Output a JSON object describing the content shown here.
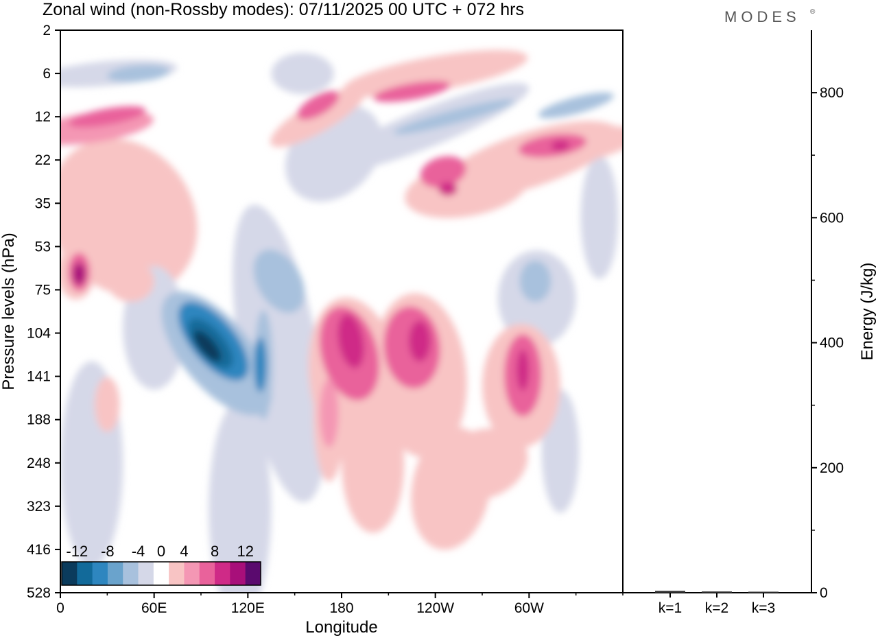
{
  "title": "Zonal wind (non-Rossby modes):  07/11/2025  00 UTC  + 072 hrs",
  "logo": "MODES",
  "logo_mark": "®",
  "chart_data": [
    {
      "type": "heatmap",
      "title": "Zonal wind (non-Rossby modes):  07/11/2025  00 UTC  + 072 hrs",
      "variable": "zonal wind",
      "xlabel": "Longitude",
      "ylabel": "Pressure levels (hPa)",
      "x_ticks": [
        "0",
        "60E",
        "120E",
        "180",
        "120W",
        "60W"
      ],
      "x_tick_degrees": [
        0,
        60,
        120,
        180,
        240,
        300
      ],
      "xlim": [
        0,
        360
      ],
      "y_ticks": [
        "2",
        "6",
        "12",
        "22",
        "35",
        "53",
        "75",
        "104",
        "141",
        "188",
        "248",
        "323",
        "416",
        "528"
      ],
      "ylim": [
        2,
        528
      ],
      "colorbar": {
        "tick_labels": [
          "-12",
          "-8",
          "-4",
          "0",
          "4",
          "8",
          "12"
        ],
        "levels": [
          -14,
          -12,
          -10,
          -8,
          -6,
          -4,
          -2,
          2,
          4,
          6,
          8,
          10,
          12,
          14
        ],
        "colors": [
          "#0b3b5c",
          "#126a9a",
          "#2e86bf",
          "#6aa3cc",
          "#a8c1dd",
          "#d5d8e8",
          "#ffffff",
          "#f8c4c4",
          "#f497b4",
          "#e9629b",
          "#cf2a87",
          "#a80f7a",
          "#5a0a6e"
        ]
      },
      "features": [
        {
          "name": "upper-strat-westerly-band-east",
          "sign": "positive",
          "lon_range": [
            130,
            360
          ],
          "p_range": [
            5,
            22
          ],
          "peak": 8
        },
        {
          "name": "upper-strat-easterly-band",
          "sign": "negative",
          "lon_range": [
            150,
            360
          ],
          "p_range": [
            6,
            30
          ],
          "peak": -8
        },
        {
          "name": "west-pacific-easterly-core",
          "sign": "negative",
          "lon": 95,
          "p": 120,
          "peak": -14
        },
        {
          "name": "central-pacific-westerly",
          "sign": "positive",
          "lon": 192,
          "p": 125,
          "peak": 8
        },
        {
          "name": "east-pacific-westerly",
          "sign": "positive",
          "lon": 232,
          "p": 115,
          "peak": 8
        },
        {
          "name": "western-atlantic-westerly",
          "sign": "positive",
          "lon": 296,
          "p": 140,
          "peak": 8
        },
        {
          "name": "indian-ocean-westerly",
          "sign": "positive",
          "lon": 12,
          "p": 65,
          "peak": 10
        }
      ]
    },
    {
      "type": "bar",
      "ylabel": "Energy (J/kg)",
      "categories": [
        "k=1",
        "k=2",
        "k=3"
      ],
      "values": [
        3,
        2,
        1
      ],
      "ylim": [
        0,
        900
      ],
      "y_ticks": [
        "0",
        "200",
        "400",
        "600",
        "800"
      ]
    }
  ]
}
